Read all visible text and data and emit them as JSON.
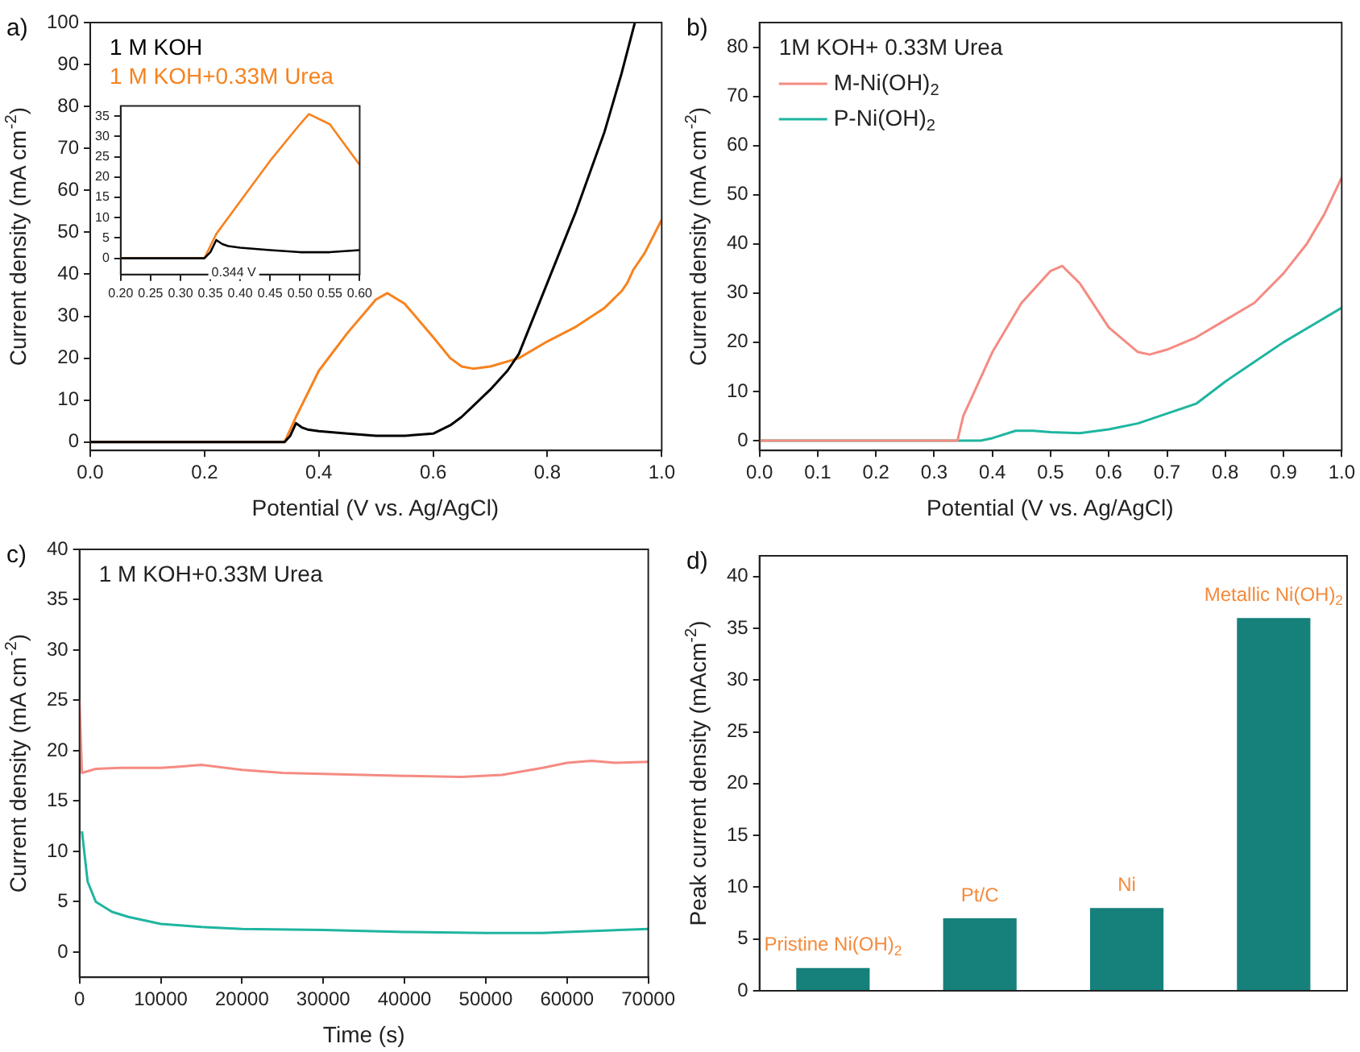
{
  "chart_data": [
    {
      "type": "line",
      "xlabel": "Potential (V vs. Ag/AgCl)",
      "ylabel": "Current density (mA cm$^{-2}$)",
      "annotations": [
        "a)"
      ],
      "legend": "top left",
      "marker": "none",
      "xlim": [
        0,
        1
      ],
      "xticks": [
        {
          "value": 0,
          "label": "0.0"
        },
        0.2,
        0.4,
        0.6,
        0.8,
        {
          "value": 1,
          "label": "1.0"
        }
      ],
      "ylim": [
        -2,
        100
      ],
      "yticks": [
        0,
        10,
        20,
        30,
        40,
        50,
        60,
        70,
        80,
        90,
        100
      ],
      "series": [
        {
          "name": "1 M KOH",
          "color": "#000000",
          "x": [
            0,
            0.34,
            0.35,
            0.36,
            0.37,
            0.38,
            0.4,
            0.45,
            0.5,
            0.55,
            0.6,
            0.63,
            0.65,
            0.7,
            0.73,
            0.75,
            0.8,
            0.85,
            0.9,
            0.93,
            0.953
          ],
          "values": [
            0,
            0,
            1.5,
            4.5,
            3.5,
            3,
            2.6,
            2,
            1.5,
            1.5,
            2,
            4,
            6,
            12.5,
            17,
            21,
            38,
            55,
            74,
            88,
            100
          ]
        },
        {
          "name": "1 M KOH+0.33M Urea",
          "color": "#f7821e",
          "x": [
            0,
            0.34,
            0.35,
            0.36,
            0.4,
            0.45,
            0.5,
            0.52,
            0.55,
            0.6,
            0.63,
            0.65,
            0.67,
            0.7,
            0.75,
            0.8,
            0.85,
            0.9,
            0.93,
            0.94,
            0.95,
            0.97,
            1
          ],
          "values": [
            0,
            0,
            3,
            6,
            17,
            26,
            34,
            35.5,
            33,
            25,
            20,
            18,
            17.5,
            18,
            20,
            24,
            27.5,
            32,
            36,
            38,
            41,
            45,
            53
          ]
        }
      ]
    },
    {
      "type": "line",
      "annotations": [
        {
          "text": "0.344 V",
          "x": 0.344,
          "y": 0
        }
      ],
      "marker": "none",
      "xlim": [
        0.2,
        0.6
      ],
      "xticks": [
        {
          "value": 0.2,
          "label": "0.20"
        },
        0.25,
        {
          "value": 0.3,
          "label": "0.30"
        },
        0.35,
        {
          "value": 0.4,
          "label": "0.40"
        },
        0.45,
        {
          "value": 0.5,
          "label": "0.50"
        },
        0.55,
        {
          "value": 0.6,
          "label": "0.60"
        }
      ],
      "ylim": [
        -4,
        37.5
      ],
      "yticks": [
        0,
        5,
        10,
        15,
        20,
        25,
        30,
        35
      ],
      "series": [
        {
          "color": "#000000",
          "x": [
            0.2,
            0.34,
            0.35,
            0.36,
            0.37,
            0.38,
            0.4,
            0.45,
            0.5,
            0.55,
            0.6
          ],
          "values": [
            0,
            0,
            1.5,
            4.5,
            3.5,
            3,
            2.6,
            2,
            1.5,
            1.5,
            2
          ]
        },
        {
          "color": "#f7821e",
          "x": [
            0.2,
            0.34,
            0.35,
            0.36,
            0.4,
            0.45,
            0.5,
            0.515,
            0.55,
            0.6
          ],
          "values": [
            0,
            0,
            3,
            6,
            14,
            24,
            33,
            35.5,
            33,
            23
          ]
        }
      ]
    },
    {
      "type": "line",
      "xlabel": "Potential (V vs. Ag/AgCl)",
      "ylabel": "Current density (mA cm$^{-2}$)",
      "annotations": [
        "b)"
      ],
      "legend": "top left",
      "legend_title": "1M KOH+ 0.33M Urea",
      "marker": "none",
      "xlim": [
        0,
        1
      ],
      "xticks": [
        {
          "value": 0,
          "label": "0.0"
        },
        0.1,
        0.2,
        0.3,
        0.4,
        0.5,
        0.6,
        0.7,
        0.8,
        0.9,
        {
          "value": 1,
          "label": "1.0"
        }
      ],
      "ylim": [
        -2,
        85
      ],
      "yticks": [
        0,
        10,
        20,
        30,
        40,
        50,
        60,
        70,
        80
      ],
      "series": [
        {
          "name": "M-Ni(OH)$_{2}$",
          "color": "#f58b82",
          "x": [
            0,
            0.34,
            0.35,
            0.4,
            0.45,
            0.5,
            0.52,
            0.55,
            0.6,
            0.65,
            0.67,
            0.7,
            0.75,
            0.8,
            0.85,
            0.9,
            0.94,
            0.97,
            1
          ],
          "values": [
            0,
            0,
            5,
            18,
            28,
            34.5,
            35.5,
            32,
            23,
            18,
            17.5,
            18.5,
            21,
            24.5,
            28,
            34,
            40,
            46,
            53.5
          ]
        },
        {
          "name": "P-Ni(OH)$_{2}$",
          "color": "#1fb5a0",
          "x": [
            0,
            0.38,
            0.4,
            0.44,
            0.47,
            0.5,
            0.55,
            0.6,
            0.65,
            0.7,
            0.75,
            0.8,
            0.85,
            0.9,
            0.95,
            1
          ],
          "values": [
            0,
            0,
            0.5,
            2,
            2,
            1.7,
            1.5,
            2.3,
            3.5,
            5.5,
            7.5,
            12,
            16,
            20,
            23.5,
            27
          ]
        }
      ]
    },
    {
      "type": "line",
      "xlabel": "Time (s)",
      "ylabel": "Current density (mA cm$^{-2}$)",
      "annotations": [
        "c)",
        "1 M KOH+0.33M Urea"
      ],
      "marker": "none",
      "xlim": [
        0,
        70000
      ],
      "xticks": [
        0,
        10000,
        20000,
        30000,
        40000,
        50000,
        60000,
        70000
      ],
      "ylim": [
        -2.5,
        40
      ],
      "yticks": [
        0,
        5,
        10,
        15,
        20,
        25,
        30,
        35,
        40
      ],
      "series": [
        {
          "color": "#f58b82",
          "x": [
            0,
            300,
            2000,
            5000,
            10000,
            12000,
            15000,
            20000,
            25000,
            30000,
            40000,
            47000,
            52000,
            57000,
            60000,
            63000,
            66000,
            70000
          ],
          "values": [
            25,
            17.8,
            18.2,
            18.3,
            18.3,
            18.4,
            18.6,
            18.1,
            17.8,
            17.7,
            17.5,
            17.4,
            17.6,
            18.3,
            18.8,
            19,
            18.8,
            18.9
          ]
        },
        {
          "color": "#1fb5a0",
          "x": [
            300,
            1000,
            2000,
            4000,
            6000,
            10000,
            15000,
            20000,
            30000,
            40000,
            50000,
            57000,
            60000,
            70000
          ],
          "values": [
            12,
            7,
            5,
            4,
            3.5,
            2.8,
            2.5,
            2.3,
            2.2,
            2,
            1.9,
            1.9,
            2,
            2.3
          ]
        }
      ]
    },
    {
      "type": "bar",
      "ylabel": "Peak current density (mAcm$^{-2}$)",
      "annotations": [
        "d)"
      ],
      "categories": [
        "Pristine Ni(OH)$_{2}$",
        "Pt/C",
        "Ni",
        "Metallic Ni(OH)$_{2}$"
      ],
      "ylim": [
        0,
        42
      ],
      "yticks": [
        0,
        5,
        10,
        15,
        20,
        25,
        30,
        35,
        40
      ],
      "series": [
        {
          "color": "#16807b",
          "values": [
            2.2,
            7,
            8,
            36
          ]
        }
      ]
    }
  ]
}
